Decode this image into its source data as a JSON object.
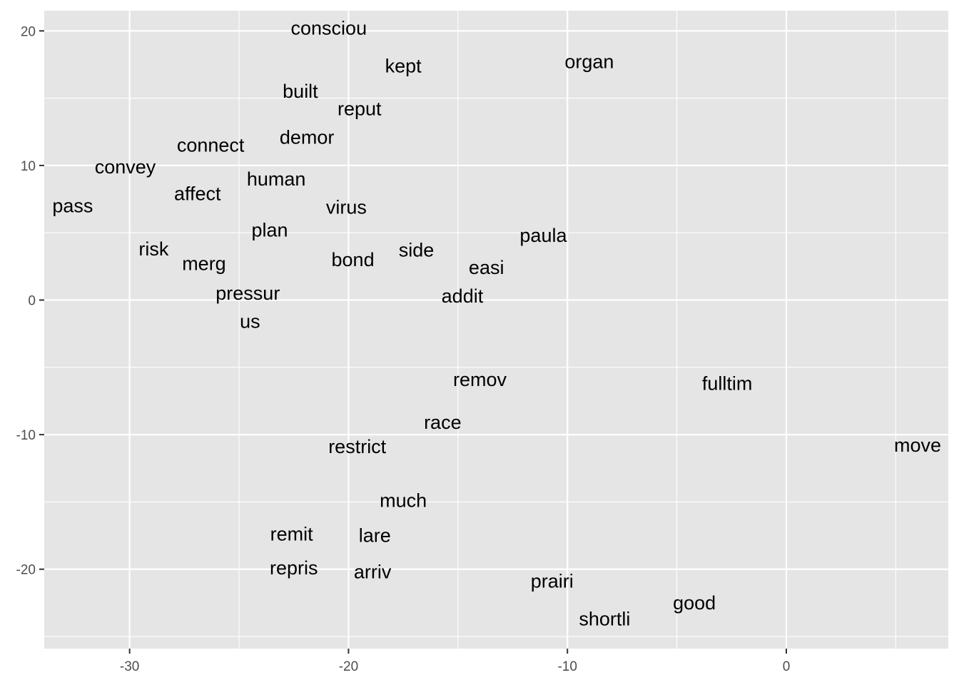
{
  "chart_data": {
    "type": "scatter",
    "title": "",
    "xlabel": "",
    "ylabel": "",
    "xlim": [
      -33.9,
      7.4
    ],
    "ylim": [
      -25.9,
      21.5
    ],
    "x_ticks": [
      -30,
      -20,
      -10,
      0
    ],
    "x_tick_labels": [
      "-30",
      "-20",
      "-10",
      "0"
    ],
    "y_ticks": [
      -20,
      -10,
      0,
      10,
      20
    ],
    "y_tick_labels": [
      "-20",
      "-10",
      "0",
      "10",
      "20"
    ],
    "x_minor": [
      -35,
      -25,
      -15,
      -5,
      5
    ],
    "y_minor": [
      -25,
      -15,
      -5,
      5,
      15
    ],
    "grid": true,
    "legend": "none",
    "colors": {
      "panel": "#e5e5e5",
      "grid": "#ffffff",
      "text": "#000000",
      "axis_text": "#4d4d4d",
      "tick": "#333333"
    },
    "points": [
      {
        "label": "consciou",
        "x": -20.9,
        "y": 20.2
      },
      {
        "label": "kept",
        "x": -17.5,
        "y": 17.4
      },
      {
        "label": "organ",
        "x": -9.0,
        "y": 17.7
      },
      {
        "label": "built",
        "x": -22.2,
        "y": 15.5
      },
      {
        "label": "reput",
        "x": -19.5,
        "y": 14.2
      },
      {
        "label": "demor",
        "x": -21.9,
        "y": 12.1
      },
      {
        "label": "connect",
        "x": -26.3,
        "y": 11.5
      },
      {
        "label": "convey",
        "x": -30.2,
        "y": 9.9
      },
      {
        "label": "human",
        "x": -23.3,
        "y": 9.0
      },
      {
        "label": "affect",
        "x": -26.9,
        "y": 7.9
      },
      {
        "label": "pass",
        "x": -32.6,
        "y": 7.0
      },
      {
        "label": "virus",
        "x": -20.1,
        "y": 6.9
      },
      {
        "label": "plan",
        "x": -23.6,
        "y": 5.2
      },
      {
        "label": "paula",
        "x": -11.1,
        "y": 4.8
      },
      {
        "label": "risk",
        "x": -28.9,
        "y": 3.8
      },
      {
        "label": "side",
        "x": -16.9,
        "y": 3.7
      },
      {
        "label": "bond",
        "x": -19.8,
        "y": 3.0
      },
      {
        "label": "merg",
        "x": -26.6,
        "y": 2.7
      },
      {
        "label": "easi",
        "x": -13.7,
        "y": 2.4
      },
      {
        "label": "pressur",
        "x": -24.6,
        "y": 0.5
      },
      {
        "label": "addit",
        "x": -14.8,
        "y": 0.3
      },
      {
        "label": "us",
        "x": -24.5,
        "y": -1.6
      },
      {
        "label": "remov",
        "x": -14.0,
        "y": -5.9
      },
      {
        "label": "fulltim",
        "x": -2.7,
        "y": -6.2
      },
      {
        "label": "race",
        "x": -15.7,
        "y": -9.1
      },
      {
        "label": "move",
        "x": 6.0,
        "y": -10.8
      },
      {
        "label": "restrict",
        "x": -19.6,
        "y": -10.9
      },
      {
        "label": "much",
        "x": -17.5,
        "y": -14.9
      },
      {
        "label": "remit",
        "x": -22.6,
        "y": -17.4
      },
      {
        "label": "lare",
        "x": -18.8,
        "y": -17.5
      },
      {
        "label": "repris",
        "x": -22.5,
        "y": -19.9
      },
      {
        "label": "arriv",
        "x": -18.9,
        "y": -20.2
      },
      {
        "label": "prairi",
        "x": -10.7,
        "y": -20.9
      },
      {
        "label": "good",
        "x": -4.2,
        "y": -22.5
      },
      {
        "label": "shortli",
        "x": -8.3,
        "y": -23.7
      }
    ]
  }
}
